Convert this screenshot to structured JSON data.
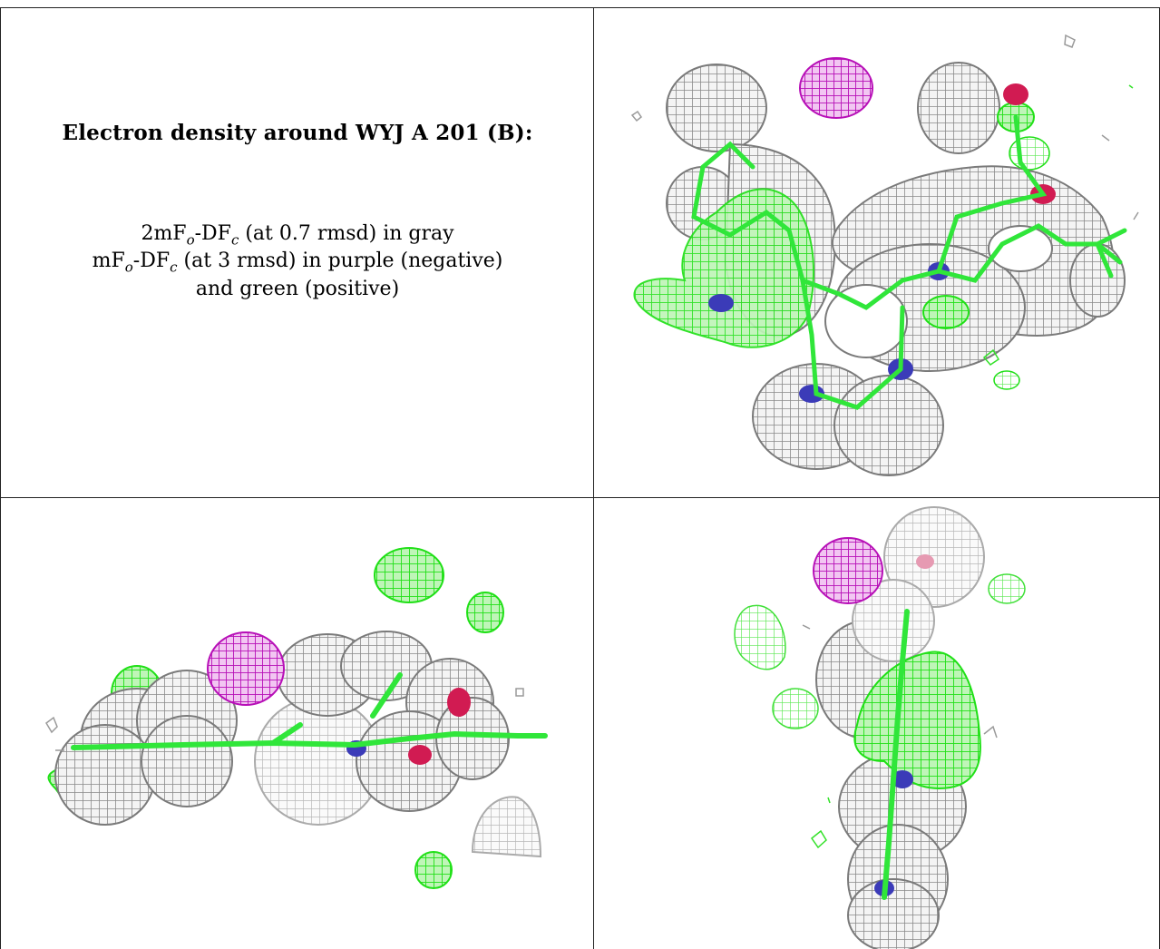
{
  "caption": {
    "title": "Electron density around WYJ A 201 (B):",
    "line1": {
      "prefix": "2mF",
      "sub1": "o",
      "mid": "-DF",
      "sub2": "c",
      "suffix": " (at 0.7 rmsd) in gray"
    },
    "line2": {
      "prefix": "mF",
      "sub1": "o",
      "mid": "-DF",
      "sub2": "c",
      "suffix": " (at 3 rmsd) in purple (negative)"
    },
    "line3": "and green (positive)"
  },
  "colors": {
    "gray_mesh": "#8c8c8c",
    "green_mesh": "#22e61a",
    "purple_mesh": "#b70fb7",
    "nitrogen": "#3b3bb8",
    "oxygen": "#d11b52",
    "border": "#222222"
  },
  "panels": [
    {
      "name": "view-top-right",
      "description_icon": "density-map-view-1"
    },
    {
      "name": "view-bottom-left",
      "description_icon": "density-map-view-2"
    },
    {
      "name": "view-bottom-right",
      "description_icon": "density-map-view-3"
    }
  ]
}
